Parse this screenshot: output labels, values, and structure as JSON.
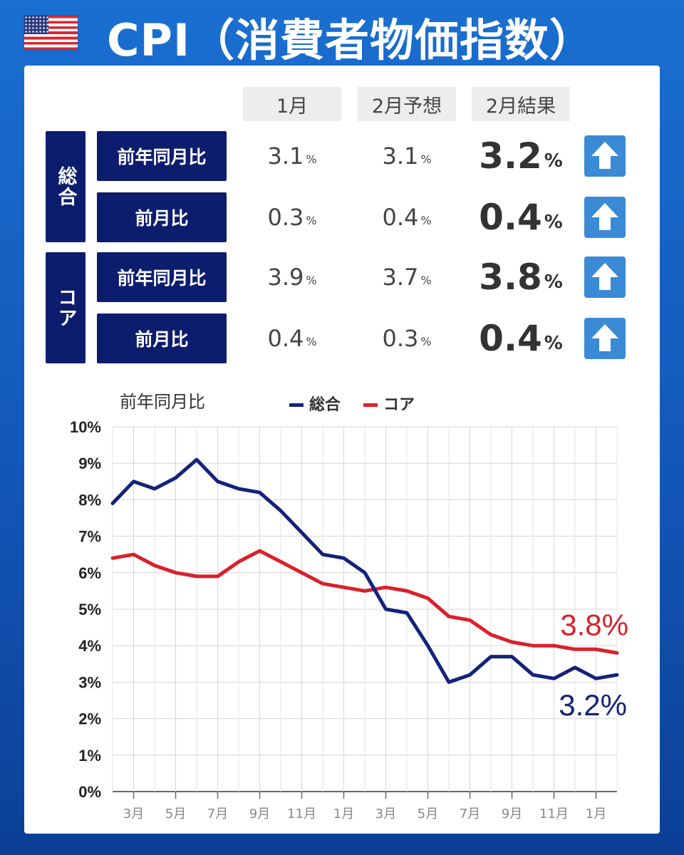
{
  "header": {
    "flag_icon": "us-flag-icon",
    "title": "CPI（消費者物価指数）"
  },
  "table": {
    "columns": [
      "1月",
      "2月予想",
      "2月結果"
    ],
    "groups": [
      {
        "label": "総合",
        "rows": [
          {
            "label": "前年同月比",
            "jan": "3.1",
            "feb_forecast": "3.1",
            "feb_result": "3.2",
            "trend_icon": "arrow-up-icon"
          },
          {
            "label": "前月比",
            "jan": "0.3",
            "feb_forecast": "0.4",
            "feb_result": "0.4",
            "trend_icon": "arrow-up-icon"
          }
        ]
      },
      {
        "label": "コア",
        "rows": [
          {
            "label": "前年同月比",
            "jan": "3.9",
            "feb_forecast": "3.7",
            "feb_result": "3.8",
            "trend_icon": "arrow-up-icon"
          },
          {
            "label": "前月比",
            "jan": "0.4",
            "feb_forecast": "0.3",
            "feb_result": "0.4",
            "trend_icon": "arrow-up-icon"
          }
        ]
      }
    ],
    "unit": "%"
  },
  "chart_data": {
    "type": "line",
    "title": "前年同月比",
    "x_tick_labels": [
      "3月",
      "5月",
      "7月",
      "9月",
      "11月",
      "1月",
      "3月",
      "5月",
      "7月",
      "9月",
      "11月",
      "1月"
    ],
    "y_tick_labels": [
      "0%",
      "1%",
      "2%",
      "3%",
      "4%",
      "5%",
      "6%",
      "7%",
      "8%",
      "9%",
      "10%"
    ],
    "ylim": [
      0,
      10
    ],
    "grid": true,
    "legend_position": "top",
    "series": [
      {
        "name": "総合",
        "color": "#13237a",
        "values": [
          7.9,
          8.5,
          8.3,
          8.6,
          9.1,
          8.5,
          8.3,
          8.2,
          7.7,
          7.1,
          6.5,
          6.4,
          6.0,
          5.0,
          4.9,
          4.0,
          3.0,
          3.2,
          3.7,
          3.7,
          3.2,
          3.1,
          3.4,
          3.1,
          3.2
        ],
        "end_label": "3.2%"
      },
      {
        "name": "コア",
        "color": "#d9212b",
        "values": [
          6.4,
          6.5,
          6.2,
          6.0,
          5.9,
          5.9,
          6.3,
          6.6,
          6.3,
          6.0,
          5.7,
          5.6,
          5.5,
          5.6,
          5.5,
          5.3,
          4.8,
          4.7,
          4.3,
          4.1,
          4.0,
          4.0,
          3.9,
          3.9,
          3.8
        ],
        "end_label": "3.8%"
      }
    ]
  }
}
